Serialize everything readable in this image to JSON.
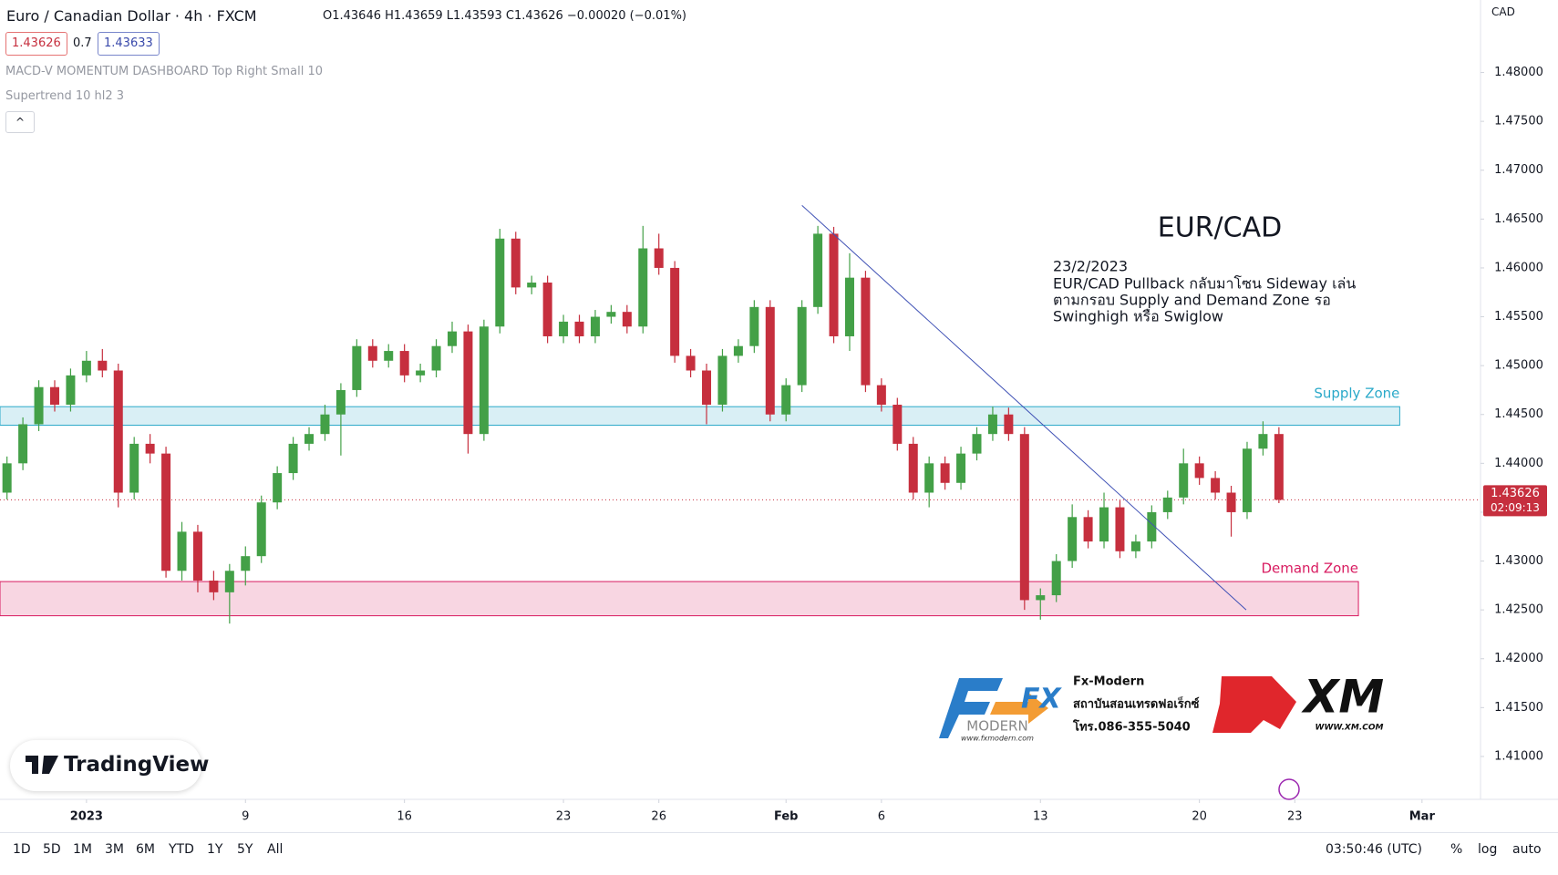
{
  "header": {
    "symbol": "Euro / Canadian Dollar · 4h · FXCM",
    "ohlc": "O1.43646 H1.43659 L1.43593 C1.43626 −0.00020 (−0.01%)",
    "bid": "1.43626",
    "spread": "0.7",
    "ask": "1.43633",
    "indicators": [
      "MACD-V MOMENTUM DASHBOARD Top Right Small 10",
      "Supertrend 10 hl2 3"
    ],
    "currency": "CAD"
  },
  "chart_data": {
    "type": "candlestick",
    "x": [
      -2.5,
      -2,
      -1.5,
      -1,
      -0.5,
      0,
      0.5,
      1,
      1.5,
      2,
      2.5,
      3,
      3.5,
      4,
      4.5,
      5,
      5.5,
      6,
      6.5,
      7,
      7.5,
      8,
      8.5,
      9,
      9.5,
      10,
      10.5,
      11,
      11.5,
      12,
      12.5,
      13,
      13.5,
      14,
      14.5,
      15,
      15.5,
      16,
      16.5,
      17,
      17.5,
      18,
      18.5,
      19,
      19.5,
      20,
      20.5,
      21,
      21.5,
      22,
      22.5,
      23,
      23.5,
      24,
      24.5,
      25,
      25.5,
      26,
      26.5,
      27,
      27.5,
      28,
      28.5,
      29,
      29.5,
      30,
      30.5,
      31,
      31.5,
      32,
      32.5,
      33,
      33.5,
      34,
      34.5,
      35,
      35.5,
      36,
      36.5,
      37,
      37.5
    ],
    "open": [
      1.437,
      1.44,
      1.444,
      1.4478,
      1.446,
      1.449,
      1.4505,
      1.4495,
      1.437,
      1.442,
      1.441,
      1.429,
      1.433,
      1.428,
      1.4268,
      1.429,
      1.4305,
      1.436,
      1.439,
      1.442,
      1.443,
      1.445,
      1.4475,
      1.452,
      1.4505,
      1.4515,
      1.449,
      1.4495,
      1.452,
      1.4535,
      1.443,
      1.454,
      1.463,
      1.458,
      1.4585,
      1.453,
      1.4545,
      1.453,
      1.455,
      1.4555,
      1.454,
      1.462,
      1.46,
      1.451,
      1.4495,
      1.446,
      1.451,
      1.452,
      1.456,
      1.445,
      1.448,
      1.456,
      1.4635,
      1.453,
      1.459,
      1.448,
      1.446,
      1.442,
      1.437,
      1.44,
      1.438,
      1.441,
      1.443,
      1.445,
      1.443,
      1.426,
      1.4265,
      1.43,
      1.4345,
      1.432,
      1.4355,
      1.431,
      1.432,
      1.435,
      1.4365,
      1.44,
      1.4385,
      1.437,
      1.435,
      1.4415,
      1.443
    ],
    "high": [
      1.4407,
      1.4447,
      1.4485,
      1.4485,
      1.4497,
      1.4515,
      1.4517,
      1.4502,
      1.4427,
      1.443,
      1.4417,
      1.434,
      1.4337,
      1.429,
      1.4297,
      1.4315,
      1.4367,
      1.4397,
      1.4427,
      1.4437,
      1.446,
      1.4482,
      1.4527,
      1.4527,
      1.4522,
      1.4522,
      1.4502,
      1.4527,
      1.4545,
      1.4542,
      1.4547,
      1.464,
      1.4637,
      1.4592,
      1.4592,
      1.4552,
      1.4552,
      1.4557,
      1.4562,
      1.4562,
      1.4643,
      1.4635,
      1.4607,
      1.4517,
      1.4502,
      1.4517,
      1.4527,
      1.4567,
      1.4567,
      1.4487,
      1.4567,
      1.4643,
      1.4642,
      1.4615,
      1.4597,
      1.4487,
      1.4467,
      1.4427,
      1.4407,
      1.4407,
      1.4417,
      1.4437,
      1.4458,
      1.4457,
      1.4437,
      1.4272,
      1.4307,
      1.4358,
      1.4352,
      1.437,
      1.4362,
      1.4327,
      1.4357,
      1.4372,
      1.4415,
      1.4407,
      1.4392,
      1.4377,
      1.4422,
      1.4443,
      1.4437
    ],
    "low": [
      1.4363,
      1.4393,
      1.4433,
      1.4453,
      1.4453,
      1.4483,
      1.4488,
      1.4355,
      1.4363,
      1.44,
      1.4283,
      1.428,
      1.4268,
      1.426,
      1.4236,
      1.4275,
      1.4298,
      1.4353,
      1.4383,
      1.4413,
      1.4423,
      1.4408,
      1.4468,
      1.4498,
      1.4498,
      1.4483,
      1.4483,
      1.4488,
      1.4513,
      1.441,
      1.4423,
      1.4533,
      1.4573,
      1.4573,
      1.4523,
      1.4523,
      1.4523,
      1.4523,
      1.4543,
      1.4533,
      1.4533,
      1.4593,
      1.4503,
      1.4488,
      1.444,
      1.4453,
      1.4503,
      1.4513,
      1.4443,
      1.4443,
      1.4473,
      1.4553,
      1.4523,
      1.4515,
      1.4473,
      1.4453,
      1.4413,
      1.4363,
      1.4355,
      1.4373,
      1.4373,
      1.4403,
      1.4423,
      1.4423,
      1.425,
      1.424,
      1.4258,
      1.4293,
      1.4313,
      1.4313,
      1.4303,
      1.4303,
      1.4313,
      1.4343,
      1.4358,
      1.4378,
      1.4363,
      1.4325,
      1.4343,
      1.4408,
      1.43593
    ],
    "close": [
      1.44,
      1.444,
      1.4478,
      1.446,
      1.449,
      1.4505,
      1.4495,
      1.437,
      1.442,
      1.441,
      1.429,
      1.433,
      1.428,
      1.4268,
      1.429,
      1.4305,
      1.436,
      1.439,
      1.442,
      1.443,
      1.445,
      1.4475,
      1.452,
      1.4505,
      1.4515,
      1.449,
      1.4495,
      1.452,
      1.4535,
      1.443,
      1.454,
      1.463,
      1.458,
      1.4585,
      1.453,
      1.4545,
      1.453,
      1.455,
      1.4555,
      1.454,
      1.462,
      1.46,
      1.451,
      1.4495,
      1.446,
      1.451,
      1.452,
      1.456,
      1.445,
      1.448,
      1.456,
      1.4635,
      1.453,
      1.459,
      1.448,
      1.446,
      1.442,
      1.437,
      1.44,
      1.438,
      1.441,
      1.443,
      1.445,
      1.443,
      1.426,
      1.4265,
      1.43,
      1.4345,
      1.432,
      1.4355,
      1.431,
      1.432,
      1.435,
      1.4365,
      1.44,
      1.4385,
      1.437,
      1.435,
      1.4415,
      1.443,
      1.43626
    ],
    "up_color": "#43a047",
    "down_color": "#c62f3e",
    "xlim": [
      -2.72,
      43.84
    ],
    "xticks": [
      {
        "value": 0,
        "label": "2023"
      },
      {
        "value": 5,
        "label": "9"
      },
      {
        "value": 10,
        "label": "16"
      },
      {
        "value": 15,
        "label": "23"
      },
      {
        "value": 18,
        "label": "26"
      },
      {
        "value": 22,
        "label": "Feb"
      },
      {
        "value": 25,
        "label": "6"
      },
      {
        "value": 30,
        "label": "13"
      },
      {
        "value": 35,
        "label": "20"
      },
      {
        "value": 38,
        "label": "23"
      },
      {
        "value": 42,
        "label": "Mar"
      }
    ],
    "ylim": [
      1.40561,
      1.48742
    ],
    "yticks": [
      {
        "value": 1.41,
        "label": "1.41000"
      },
      {
        "value": 1.415,
        "label": "1.41500"
      },
      {
        "value": 1.42,
        "label": "1.42000"
      },
      {
        "value": 1.425,
        "label": "1.42500"
      },
      {
        "value": 1.43,
        "label": "1.43000"
      },
      {
        "value": 1.435,
        "label": "1.43500"
      },
      {
        "value": 1.44,
        "label": "1.44000"
      },
      {
        "value": 1.445,
        "label": "1.44500"
      },
      {
        "value": 1.45,
        "label": "1.45000"
      },
      {
        "value": 1.455,
        "label": "1.45500"
      },
      {
        "value": 1.46,
        "label": "1.46000"
      },
      {
        "value": 1.465,
        "label": "1.46500"
      },
      {
        "value": 1.47,
        "label": "1.47000"
      },
      {
        "value": 1.475,
        "label": "1.47500"
      },
      {
        "value": 1.48,
        "label": "1.48000"
      }
    ],
    "grid": false,
    "last_price": {
      "value": 1.43626,
      "label": "1.43626",
      "countdown": "02:09:13"
    },
    "zones": [
      {
        "label": "Supply Zone",
        "low": 1.4439,
        "high": 1.4458,
        "x_end": 41.3,
        "color": "#2aa9c9"
      },
      {
        "label": "Demand Zone",
        "low": 1.4244,
        "high": 1.4279,
        "x_end": 40.0,
        "color": "#d81b60"
      }
    ],
    "trendline": {
      "x": [
        22.5,
        36.47
      ],
      "y": [
        1.4664,
        1.425
      ],
      "color": "#3f51b5"
    },
    "annotation": {
      "title": "EUR/CAD",
      "date": "23/2/2023",
      "lines": [
        "EUR/CAD Pullback กลับมาโซน Sideway เล่น",
        "ตามกรอบ Supply and Demand Zone รอ",
        "Swinghigh หรือ Swiglow"
      ]
    }
  },
  "branding": {
    "fx_logo": "FX",
    "fx_sub": "MODERN",
    "fx_url": "www.fxmodern.com",
    "fx_name": "Fx-Modern",
    "fx_desc": "สถาบันสอนเทรดฟอเร็กซ์",
    "fx_phone": "โทร.086-355-5040",
    "xm_logo": "XM",
    "xm_url": "WWW.XM.COM",
    "tradingview": "TradingView"
  },
  "toolbar": {
    "ranges": [
      "1D",
      "5D",
      "1M",
      "3M",
      "6M",
      "YTD",
      "1Y",
      "5Y",
      "All"
    ],
    "time": "03:50:46 (UTC)",
    "options": [
      "%",
      "log",
      "auto"
    ]
  }
}
